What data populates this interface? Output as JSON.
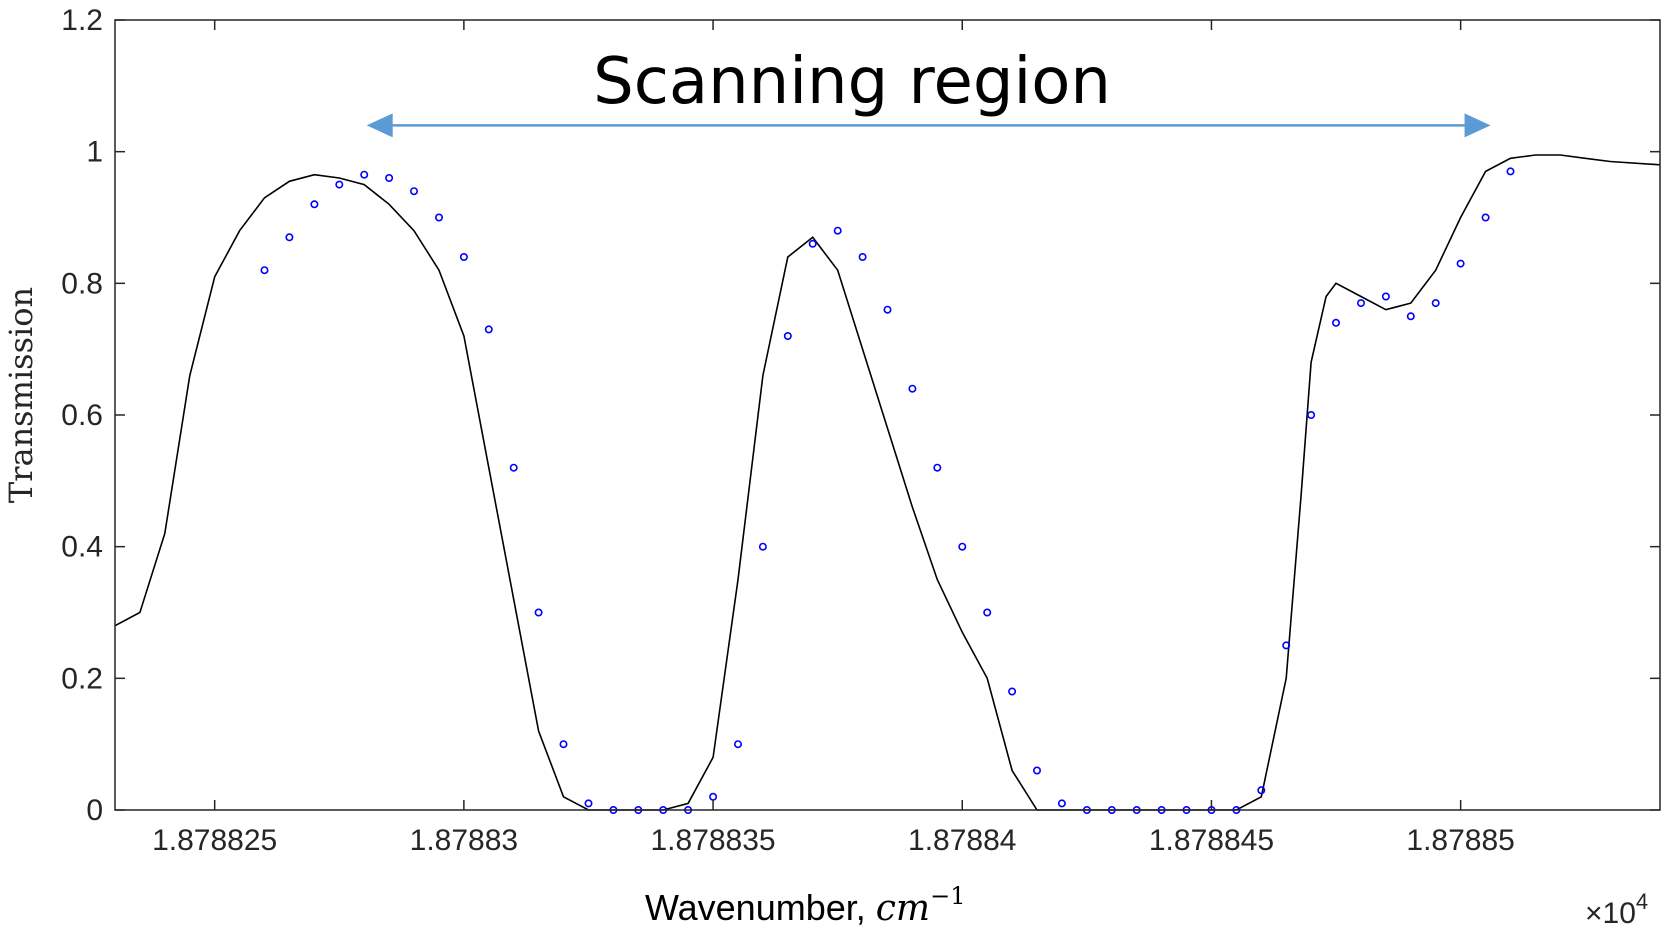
{
  "chart_data": {
    "type": "line",
    "title": "",
    "xlabel": "Wavenumber, ",
    "xlabel_unit": "cm",
    "xlabel_exp": "−1",
    "ylabel": "Transmission",
    "x_multiplier": "×10",
    "x_multiplier_exp": "4",
    "xlim": [
      1.878823,
      1.878854
    ],
    "ylim": [
      0,
      1.2
    ],
    "x_ticks": [
      1.878825,
      1.87883,
      1.878835,
      1.87884,
      1.878845,
      1.87885
    ],
    "x_tick_labels": [
      "1.878825",
      "1.87883",
      "1.878835",
      "1.87884",
      "1.878845",
      "1.87885"
    ],
    "y_ticks": [
      0,
      0.2,
      0.4,
      0.6,
      0.8,
      1,
      1.2
    ],
    "y_tick_labels": [
      "0",
      "0.2",
      "0.4",
      "0.6",
      "0.8",
      "1",
      "1.2"
    ],
    "annotation": {
      "text": "Scanning region",
      "arrow_from": 1.87882805,
      "arrow_to": 1.8788506,
      "arrow_y": 1.04,
      "arrow_color": "#5b9bd5"
    },
    "series": [
      {
        "style": "line",
        "color": "#000000",
        "x": [
          1.878823,
          1.8788235,
          1.878824,
          1.8788245,
          1.878825,
          1.8788255,
          1.878826,
          1.8788265,
          1.878827,
          1.8788275,
          1.878828,
          1.8788285,
          1.878829,
          1.8788295,
          1.87883,
          1.8788305,
          1.878831,
          1.8788315,
          1.878832,
          1.8788325,
          1.878833,
          1.8788335,
          1.878834,
          1.8788345,
          1.878835,
          1.8788355,
          1.878836,
          1.8788365,
          1.878837,
          1.8788375,
          1.878838,
          1.8788385,
          1.878839,
          1.8788395,
          1.87884,
          1.8788405,
          1.878841,
          1.8788415,
          1.878842,
          1.8788425,
          1.878843,
          1.8788435,
          1.878844,
          1.8788445,
          1.878845,
          1.8788455,
          1.878846,
          1.8788465,
          1.8788468,
          1.878847,
          1.8788473,
          1.8788475,
          1.878848,
          1.8788485,
          1.878849,
          1.8788495,
          1.87885,
          1.8788505,
          1.878851,
          1.8788515,
          1.878852,
          1.8788525,
          1.878853,
          1.878854
        ],
        "y": [
          0.28,
          0.3,
          0.42,
          0.66,
          0.81,
          0.88,
          0.93,
          0.955,
          0.965,
          0.96,
          0.95,
          0.92,
          0.88,
          0.82,
          0.72,
          0.52,
          0.32,
          0.12,
          0.02,
          0.0,
          0.0,
          0.0,
          0.0,
          0.01,
          0.08,
          0.35,
          0.66,
          0.84,
          0.87,
          0.82,
          0.7,
          0.58,
          0.46,
          0.35,
          0.27,
          0.2,
          0.06,
          0.0,
          0.0,
          0.0,
          0.0,
          0.0,
          0.0,
          0.0,
          0.0,
          0.0,
          0.02,
          0.2,
          0.48,
          0.68,
          0.78,
          0.8,
          0.78,
          0.76,
          0.77,
          0.82,
          0.9,
          0.97,
          0.99,
          0.995,
          0.995,
          0.99,
          0.985,
          0.98
        ]
      },
      {
        "style": "markers",
        "color": "#0000ff",
        "x": [
          1.878826,
          1.8788265,
          1.878827,
          1.8788275,
          1.878828,
          1.8788285,
          1.878829,
          1.8788295,
          1.87883,
          1.8788305,
          1.878831,
          1.8788315,
          1.878832,
          1.8788325,
          1.878833,
          1.8788335,
          1.878834,
          1.8788345,
          1.878835,
          1.8788355,
          1.878836,
          1.8788365,
          1.878837,
          1.8788375,
          1.878838,
          1.8788385,
          1.878839,
          1.8788395,
          1.87884,
          1.8788405,
          1.878841,
          1.8788415,
          1.878842,
          1.8788425,
          1.878843,
          1.8788435,
          1.878844,
          1.8788445,
          1.878845,
          1.8788455,
          1.878846,
          1.8788465,
          1.878847,
          1.8788475,
          1.878848,
          1.8788485,
          1.878849,
          1.8788495,
          1.87885,
          1.8788505,
          1.878851
        ],
        "y": [
          0.82,
          0.87,
          0.92,
          0.95,
          0.965,
          0.96,
          0.94,
          0.9,
          0.84,
          0.73,
          0.52,
          0.3,
          0.1,
          0.01,
          0.0,
          0.0,
          0.0,
          0.0,
          0.02,
          0.1,
          0.4,
          0.72,
          0.86,
          0.88,
          0.84,
          0.76,
          0.64,
          0.52,
          0.4,
          0.3,
          0.18,
          0.06,
          0.01,
          0.0,
          0.0,
          0.0,
          0.0,
          0.0,
          0.0,
          0.0,
          0.03,
          0.25,
          0.6,
          0.74,
          0.77,
          0.78,
          0.75,
          0.77,
          0.83,
          0.9,
          0.97
        ]
      }
    ]
  }
}
